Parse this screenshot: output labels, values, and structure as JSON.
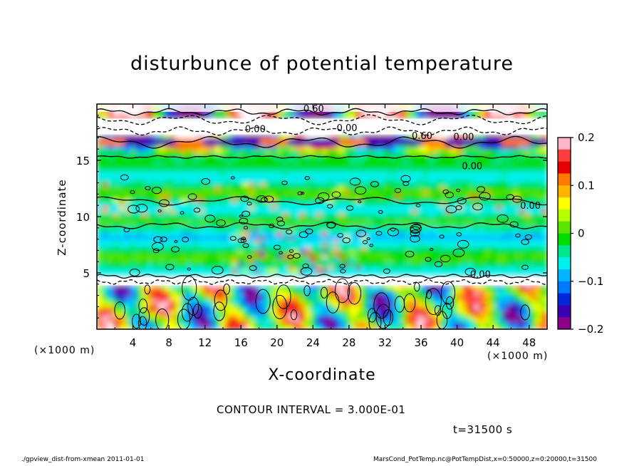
{
  "title": "disturbunce of potential temperature",
  "chart_data": {
    "type": "heatmap",
    "title": "disturbunce of potential temperature",
    "xlabel": "X-coordinate",
    "ylabel": "Z-coordinate",
    "x_unit": "(×1000 m)",
    "y_unit": "(×1000 m)",
    "xlim": [
      0,
      50
    ],
    "ylim": [
      0,
      20
    ],
    "x_ticks": [
      4,
      8,
      12,
      16,
      20,
      24,
      28,
      32,
      36,
      40,
      44,
      48
    ],
    "y_ticks": [
      5,
      10,
      15
    ],
    "colorbar": {
      "min": -0.2,
      "max": 0.2,
      "tick_labels": [
        "0.2",
        "0.1",
        "0",
        "−0.1",
        "−0.2"
      ],
      "tick_values": [
        0.2,
        0.1,
        0,
        -0.1,
        -0.2
      ],
      "colors": [
        "#ffb4c8",
        "#ff3c3c",
        "#e60000",
        "#ff7800",
        "#ffb400",
        "#ffff00",
        "#b4ff00",
        "#5ae600",
        "#00dc00",
        "#00e68c",
        "#00f0f0",
        "#00b4ff",
        "#0078ff",
        "#0028dc",
        "#3c00b4",
        "#8c008c"
      ]
    },
    "contour_labels": [
      "0.60",
      "0.00",
      "0.00",
      "0.60",
      "0.00",
      "0.00",
      "0.00",
      "0.00"
    ],
    "contour_interval": "CONTOUR INTERVAL = 3.000E-01",
    "time": "t=31500 s"
  },
  "footer": {
    "left": "./gpview_dist-from-xmean   2011-01-01",
    "right": "MarsCond_PotTemp.nc@PotTempDist,x=0:50000,z=0:20000,t=31500"
  },
  "colors": {
    "background": "#ffffff",
    "frame": "#000000",
    "contour": "#000000"
  }
}
